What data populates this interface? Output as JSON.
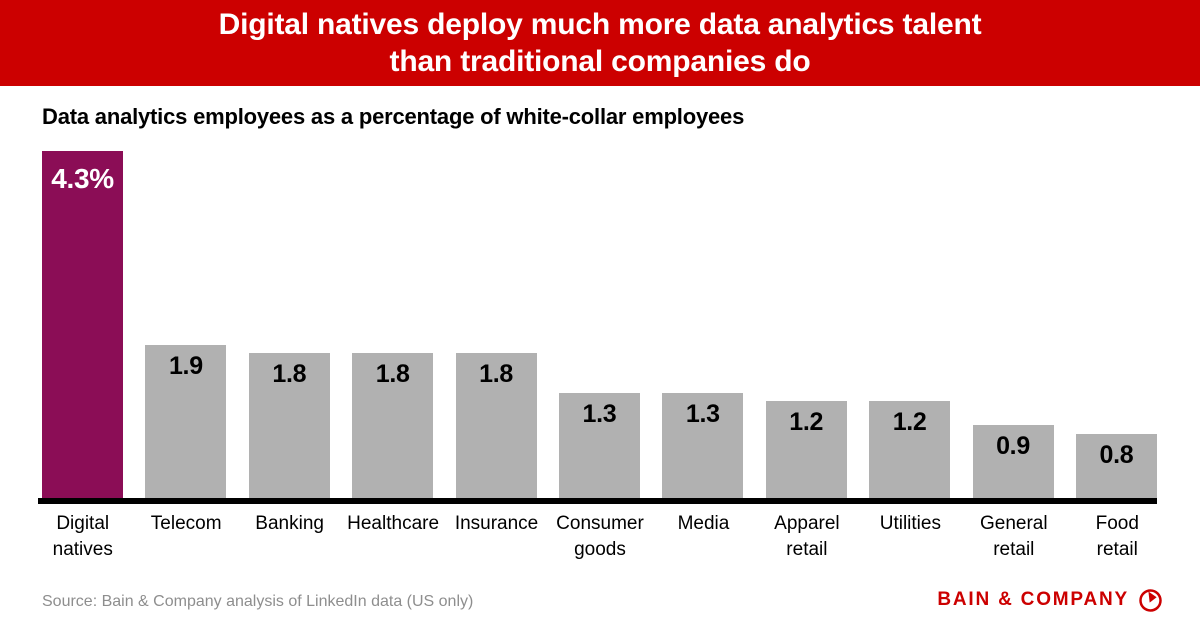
{
  "banner": {
    "title": "Digital natives deploy much more data analytics talent\nthan traditional companies do",
    "bg_color": "#CC0000",
    "text_color": "#FFFFFF"
  },
  "subtitle": "Data analytics employees as a percentage of white-collar employees",
  "chart_data": {
    "type": "bar",
    "title": "Data analytics employees as a percentage of white-collar employees",
    "categories": [
      "Digital natives",
      "Telecom",
      "Banking",
      "Healthcare",
      "Insurance",
      "Consumer goods",
      "Media",
      "Apparel retail",
      "Utilities",
      "General retail",
      "Food retail"
    ],
    "values": [
      4.3,
      1.9,
      1.8,
      1.8,
      1.8,
      1.3,
      1.3,
      1.2,
      1.2,
      0.9,
      0.8
    ],
    "value_labels": [
      "4.3%",
      "1.9",
      "1.8",
      "1.8",
      "1.8",
      "1.3",
      "1.3",
      "1.2",
      "1.2",
      "0.9",
      "0.8"
    ],
    "display_labels": [
      "Digital\nnatives",
      "Telecom",
      "Banking",
      "Healthcare",
      "Insurance",
      "Consumer\ngoods",
      "Media",
      "Apparel\nretail",
      "Utilities",
      "General\nretail",
      "Food\nretail"
    ],
    "highlight_index": 0,
    "colors": {
      "highlight_bar": "#8B0D56",
      "default_bar": "#B1B1B1",
      "value_label_on_highlight": "#FFFFFF",
      "value_label_default": "#000000",
      "axis": "#000000"
    },
    "xlabel": "",
    "ylabel": "",
    "ylim": [
      0,
      4.5
    ],
    "grid": false,
    "legend": false
  },
  "footer": {
    "source": "Source: Bain & Company analysis of LinkedIn data (US only)",
    "logo_text": "BAIN & COMPANY",
    "logo_color": "#CC0000"
  }
}
